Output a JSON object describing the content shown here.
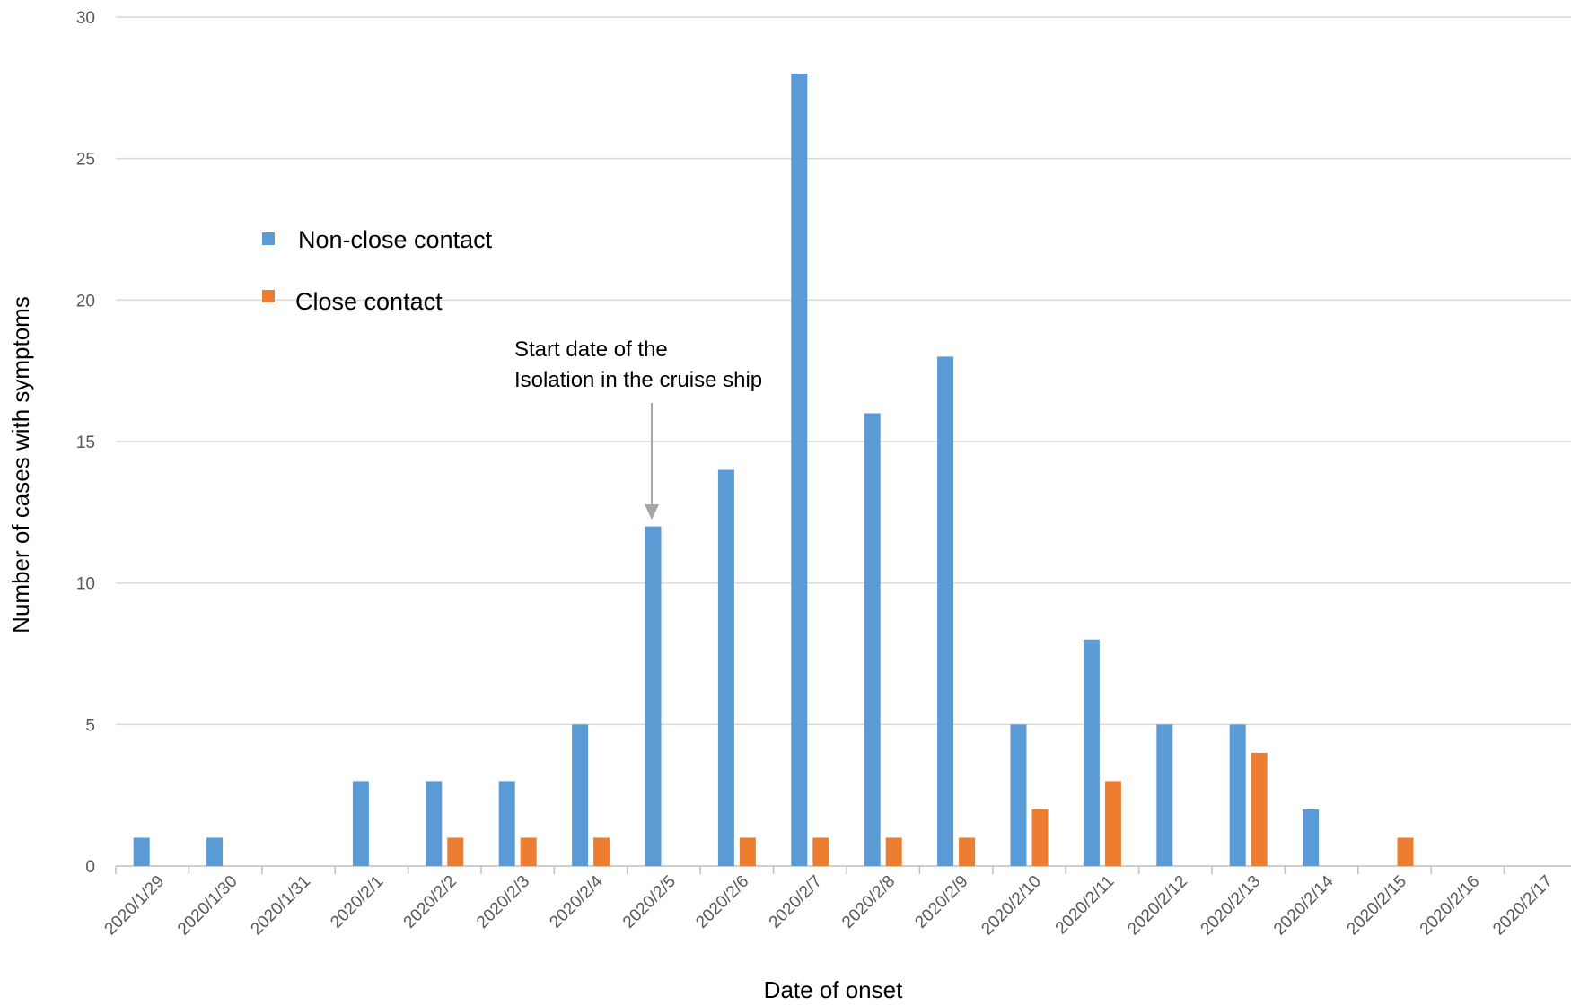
{
  "chart_data": {
    "type": "bar",
    "title": "",
    "xlabel": "Date of onset",
    "ylabel": "Number of cases with symptoms",
    "ylim": [
      0,
      30
    ],
    "yticks": [
      0,
      5,
      10,
      15,
      20,
      25,
      30
    ],
    "grid": "horizontal",
    "legend_position": "upper-left",
    "categories": [
      "2020/1/29",
      "2020/1/30",
      "2020/1/31",
      "2020/2/1",
      "2020/2/2",
      "2020/2/3",
      "2020/2/4",
      "2020/2/5",
      "2020/2/6",
      "2020/2/7",
      "2020/2/8",
      "2020/2/9",
      "2020/2/10",
      "2020/2/11",
      "2020/2/12",
      "2020/2/13",
      "2020/2/14",
      "2020/2/15",
      "2020/2/16",
      "2020/2/17"
    ],
    "series": [
      {
        "name": "Non-close contact",
        "color": "#5B9BD5",
        "values": [
          1,
          1,
          0,
          3,
          3,
          3,
          5,
          12,
          14,
          28,
          16,
          18,
          5,
          8,
          5,
          5,
          2,
          0,
          0,
          0
        ]
      },
      {
        "name": "Close contact",
        "color": "#ED7D31",
        "values": [
          0,
          0,
          0,
          0,
          1,
          1,
          1,
          0,
          1,
          1,
          1,
          1,
          2,
          3,
          0,
          4,
          0,
          1,
          0,
          0
        ]
      }
    ],
    "annotation": {
      "lines": [
        "Start date of the",
        "Isolation in the cruise ship"
      ],
      "category": "2020/2/5"
    }
  }
}
